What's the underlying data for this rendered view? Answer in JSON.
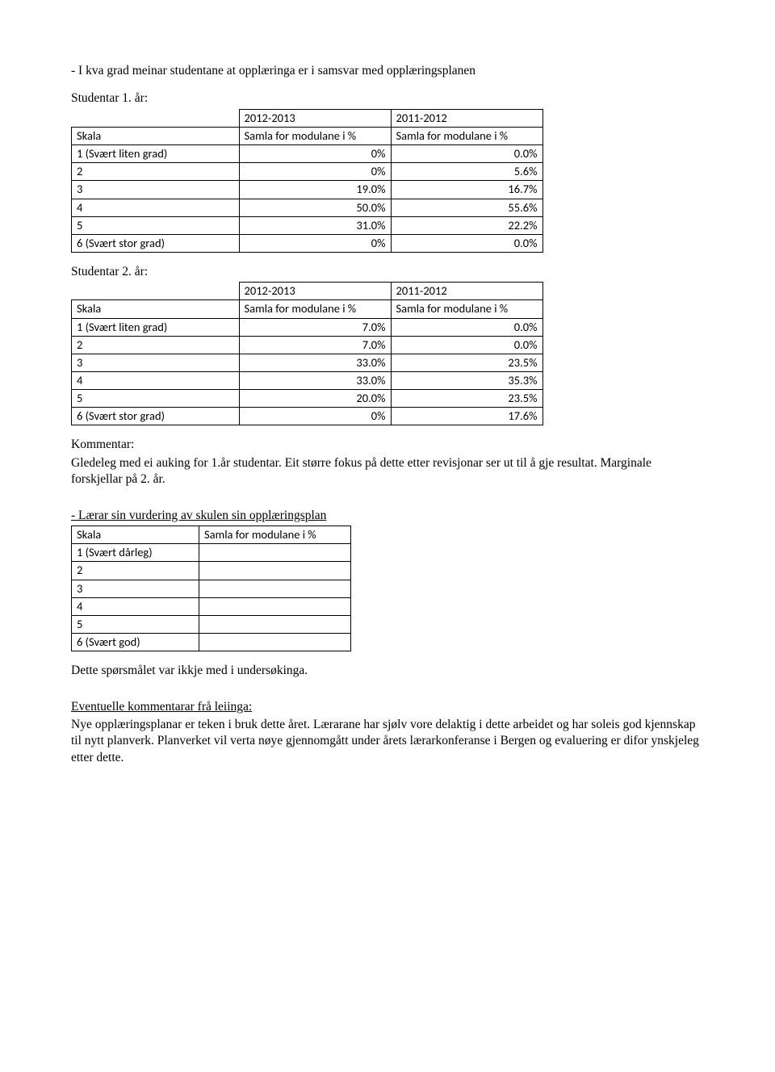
{
  "heading1": "- I kva grad meinar studentane at opplæringa er i samsvar med opplæringsplanen",
  "stud1_label": "Studentar 1. år:",
  "stud2_label": "Studentar 2. år:",
  "table1": {
    "cols_width": [
      195,
      175,
      175
    ],
    "header": [
      "Skala",
      "2012-2013",
      "2011-2012"
    ],
    "subheader": [
      "",
      "Samla for modulane i %",
      "Samla for modulane i %"
    ],
    "rows": [
      [
        "1 (Svært liten grad)",
        "0%",
        "0.0%"
      ],
      [
        "2",
        "0%",
        "5.6%"
      ],
      [
        "3",
        "19.0%",
        "16.7%"
      ],
      [
        "4",
        "50.0%",
        "55.6%"
      ],
      [
        "5",
        "31.0%",
        "22.2%"
      ],
      [
        "6 (Svært stor grad)",
        "0%",
        "0.0%"
      ]
    ]
  },
  "table2": {
    "cols_width": [
      195,
      175,
      175
    ],
    "header": [
      "Skala",
      "2012-2013",
      "2011-2012"
    ],
    "subheader": [
      "",
      "Samla for modulane i %",
      "Samla for modulane i %"
    ],
    "rows": [
      [
        "1 (Svært liten grad)",
        "7.0%",
        "0.0%"
      ],
      [
        "2",
        "7.0%",
        "0.0%"
      ],
      [
        "3",
        "33.0%",
        "23.5%"
      ],
      [
        "4",
        "33.0%",
        "35.3%"
      ],
      [
        "5",
        "20.0%",
        "23.5%"
      ],
      [
        "6 (Svært stor grad)",
        "0%",
        "17.6%"
      ]
    ]
  },
  "kommentar_label": "Kommentar:",
  "kommentar_text": "Gledeleg med ei auking for 1.år studentar. Eit større fokus på dette etter revisjonar ser ut til å gje resultat. Marginale forskjellar på 2. år.",
  "heading2": "- Lærar sin vurdering av skulen sin opplæringsplan",
  "table3": {
    "cols_width": [
      145,
      175
    ],
    "header": [
      "Skala",
      "Samla for modulane i %"
    ],
    "rows": [
      [
        "1 (Svært dårleg)",
        ""
      ],
      [
        "2",
        ""
      ],
      [
        "3",
        ""
      ],
      [
        "4",
        ""
      ],
      [
        "5",
        ""
      ],
      [
        "6 (Svært god)",
        ""
      ]
    ]
  },
  "note1": "Dette spørsmålet var ikkje med i undersøkinga.",
  "eventuelle_label": "Eventuelle kommentarar frå leiinga:",
  "eventuelle_text": "Nye opplæringsplanar er teken i bruk dette året. Lærarane har sjølv vore delaktig i dette arbeidet og har soleis god kjennskap til nytt planverk. Planverket vil verta nøye gjennomgått under årets lærarkonferanse i Bergen og evaluering er difor ynskjeleg etter dette."
}
